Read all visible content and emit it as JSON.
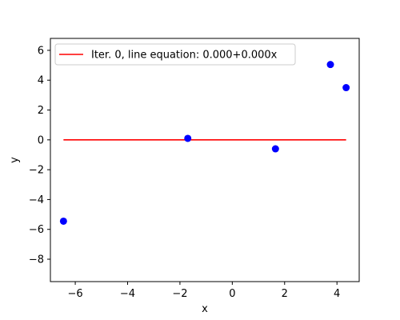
{
  "chart_data": {
    "type": "scatter",
    "title": "",
    "xlabel": "x",
    "ylabel": "y",
    "xlim": [
      -6.95,
      4.85
    ],
    "ylim": [
      -9.5,
      6.8
    ],
    "xticks": [
      -6,
      -4,
      -2,
      0,
      2,
      4
    ],
    "yticks": [
      -8,
      -6,
      -4,
      -2,
      0,
      2,
      4,
      6
    ],
    "xtick_labels": [
      "−6",
      "−4",
      "−2",
      "0",
      "2",
      "4"
    ],
    "ytick_labels": [
      "−8",
      "−6",
      "−4",
      "−2",
      "0",
      "2",
      "4",
      "6"
    ],
    "grid": false,
    "legend_position": "top-left",
    "points": {
      "color": "#0000ff",
      "x": [
        -6.45,
        -1.7,
        1.65,
        3.75,
        4.35
      ],
      "y": [
        -5.45,
        0.1,
        -0.6,
        5.05,
        3.5
      ]
    },
    "line": {
      "name": "Iter. 0, line equation: 0.000+0.000x",
      "color": "#ff0000",
      "x": [
        -6.45,
        4.35
      ],
      "y": [
        0.0,
        0.0
      ]
    }
  }
}
